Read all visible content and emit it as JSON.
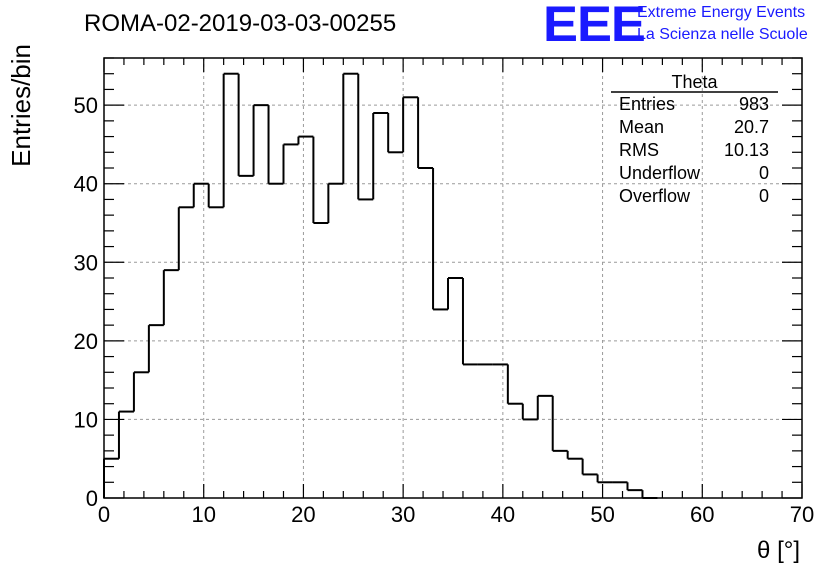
{
  "header": {
    "title": "ROMA-02-2019-03-03-00255",
    "logo_text": "EEE",
    "logo_line1": "Extreme Energy Events",
    "logo_line2": "La Scienza nelle Scuole",
    "logo_color": "#1a1aff"
  },
  "chart_data": {
    "type": "histogram",
    "xlabel": "θ [°]",
    "ylabel": "Entries/bin",
    "xlim": [
      0,
      70
    ],
    "ylim": [
      0,
      56
    ],
    "xticks": [
      0,
      10,
      20,
      30,
      40,
      50,
      60,
      70
    ],
    "yticks": [
      0,
      10,
      20,
      30,
      40,
      50
    ],
    "grid": true,
    "bin_width": 1.5,
    "bins": [
      {
        "x0": 0.0,
        "count": 5
      },
      {
        "x0": 1.5,
        "count": 11
      },
      {
        "x0": 3.0,
        "count": 16
      },
      {
        "x0": 4.5,
        "count": 22
      },
      {
        "x0": 6.0,
        "count": 29
      },
      {
        "x0": 7.5,
        "count": 37
      },
      {
        "x0": 9.0,
        "count": 40
      },
      {
        "x0": 10.5,
        "count": 37
      },
      {
        "x0": 12.0,
        "count": 54
      },
      {
        "x0": 13.5,
        "count": 41
      },
      {
        "x0": 15.0,
        "count": 50
      },
      {
        "x0": 16.5,
        "count": 40
      },
      {
        "x0": 18.0,
        "count": 45
      },
      {
        "x0": 19.5,
        "count": 46
      },
      {
        "x0": 21.0,
        "count": 35
      },
      {
        "x0": 22.5,
        "count": 40
      },
      {
        "x0": 24.0,
        "count": 54
      },
      {
        "x0": 25.5,
        "count": 38
      },
      {
        "x0": 27.0,
        "count": 49
      },
      {
        "x0": 28.5,
        "count": 44
      },
      {
        "x0": 30.0,
        "count": 51
      },
      {
        "x0": 31.5,
        "count": 42
      },
      {
        "x0": 33.0,
        "count": 24
      },
      {
        "x0": 34.5,
        "count": 28
      },
      {
        "x0": 36.0,
        "count": 17
      },
      {
        "x0": 37.5,
        "count": 17
      },
      {
        "x0": 39.0,
        "count": 17
      },
      {
        "x0": 40.5,
        "count": 12
      },
      {
        "x0": 42.0,
        "count": 10
      },
      {
        "x0": 43.5,
        "count": 13
      },
      {
        "x0": 45.0,
        "count": 6
      },
      {
        "x0": 46.5,
        "count": 5
      },
      {
        "x0": 48.0,
        "count": 3
      },
      {
        "x0": 49.5,
        "count": 2
      },
      {
        "x0": 51.0,
        "count": 2
      },
      {
        "x0": 52.5,
        "count": 1
      },
      {
        "x0": 54.0,
        "count": 0
      }
    ],
    "stats": {
      "title": "Theta",
      "rows": [
        {
          "label": "Entries",
          "value": "983"
        },
        {
          "label": "Mean",
          "value": "20.7"
        },
        {
          "label": "RMS",
          "value": "10.13"
        },
        {
          "label": "Underflow",
          "value": "0"
        },
        {
          "label": "Overflow",
          "value": "0"
        }
      ],
      "placement": "top-right"
    }
  }
}
